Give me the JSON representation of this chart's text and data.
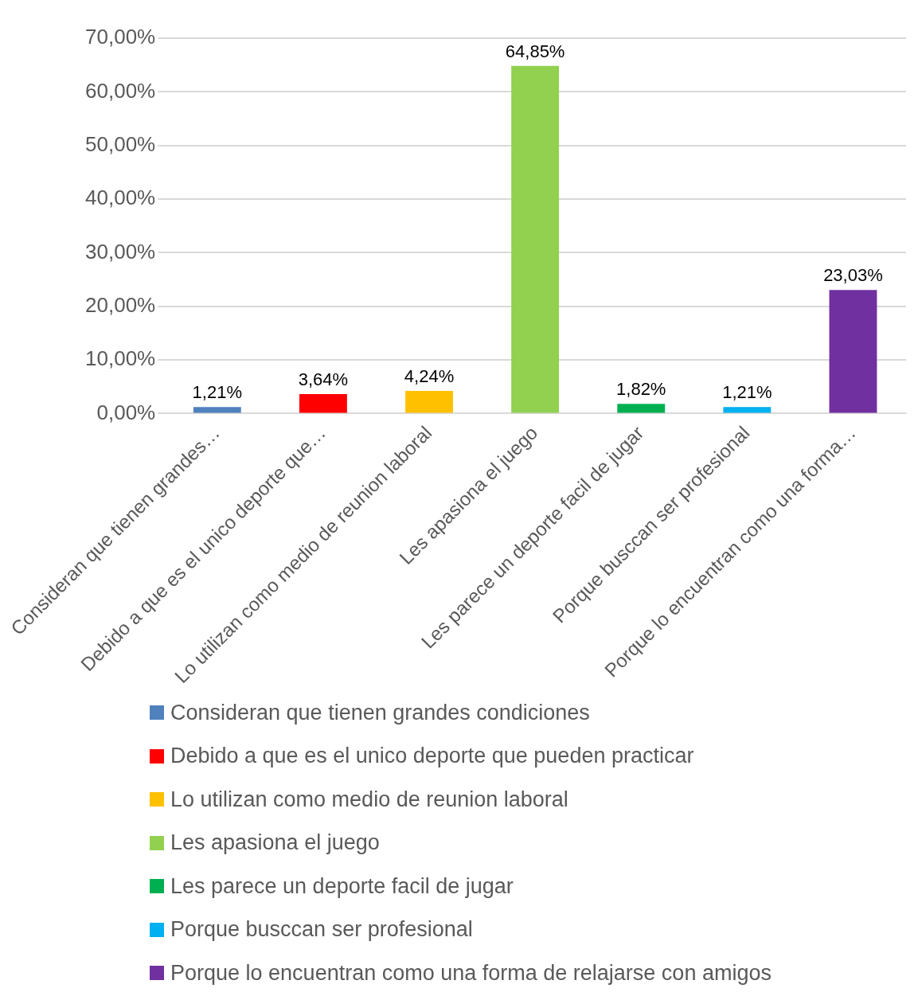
{
  "chart_data": {
    "type": "bar",
    "categories": [
      "Consideran que tienen grandes…",
      "Debido a que es el unico deporte que…",
      "Lo utilizan como medio de reunion laboral",
      "Les apasiona el juego",
      "Les parece un deporte facil de jugar",
      "Porque busccan ser profesional",
      "Porque lo encuentran como una forma…"
    ],
    "series": [
      {
        "name": "Consideran que tienen grandes condiciones",
        "color": "#4f81bd",
        "values": [
          1.21,
          null,
          null,
          null,
          null,
          null,
          null
        ],
        "value_labels": [
          "1,21%",
          null,
          null,
          null,
          null,
          null,
          null
        ]
      },
      {
        "name": "Debido a que es el unico deporte que pueden practicar",
        "color": "#ff0000",
        "values": [
          null,
          3.64,
          null,
          null,
          null,
          null,
          null
        ],
        "value_labels": [
          null,
          "3,64%",
          null,
          null,
          null,
          null,
          null
        ]
      },
      {
        "name": "Lo utilizan como medio de reunion laboral",
        "color": "#ffc000",
        "values": [
          null,
          null,
          4.24,
          null,
          null,
          null,
          null
        ],
        "value_labels": [
          null,
          null,
          "4,24%",
          null,
          null,
          null,
          null
        ]
      },
      {
        "name": "Les apasiona el juego",
        "color": "#92d050",
        "values": [
          null,
          null,
          null,
          64.85,
          null,
          null,
          null
        ],
        "value_labels": [
          null,
          null,
          null,
          "64,85%",
          null,
          null,
          null
        ]
      },
      {
        "name": "Les parece un deporte facil de jugar",
        "color": "#00b050",
        "values": [
          null,
          null,
          null,
          null,
          1.82,
          null,
          null
        ],
        "value_labels": [
          null,
          null,
          null,
          null,
          "1,82%",
          null,
          null
        ]
      },
      {
        "name": "Porque busccan ser profesional",
        "color": "#00b0f0",
        "values": [
          null,
          null,
          null,
          null,
          null,
          1.21,
          null
        ],
        "value_labels": [
          null,
          null,
          null,
          null,
          null,
          "1,21%",
          null
        ]
      },
      {
        "name": "Porque lo encuentran como una forma de relajarse con amigos",
        "color": "#7030a0",
        "values": [
          null,
          null,
          null,
          null,
          null,
          null,
          23.03
        ],
        "value_labels": [
          null,
          null,
          null,
          null,
          null,
          null,
          "23,03%"
        ]
      }
    ],
    "ylim": [
      0,
      70
    ],
    "yticks": [
      {
        "value": 0,
        "label": "0,00%"
      },
      {
        "value": 10,
        "label": "10,00%"
      },
      {
        "value": 20,
        "label": "20,00%"
      },
      {
        "value": 30,
        "label": "30,00%"
      },
      {
        "value": 40,
        "label": "40,00%"
      },
      {
        "value": 50,
        "label": "50,00%"
      },
      {
        "value": 60,
        "label": "60,00%"
      },
      {
        "value": 70,
        "label": "70,00%"
      }
    ],
    "grid": "y",
    "legend": "bottom"
  }
}
